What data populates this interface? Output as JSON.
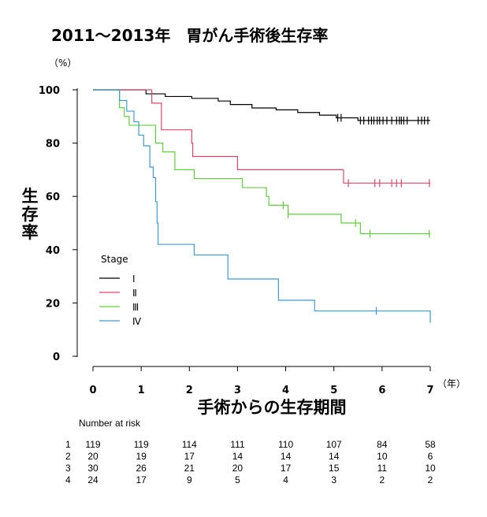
{
  "chart_data": {
    "type": "line",
    "title": "2011～2013年　胃がん手術後生存率",
    "y_unit": "（%）",
    "x_unit": "（年）",
    "xlabel": "手術からの生存期間",
    "ylabel": "生存率",
    "xlim": [
      0,
      7
    ],
    "ylim": [
      0,
      100
    ],
    "x_ticks": [
      "0",
      "1",
      "2",
      "3",
      "4",
      "5",
      "6",
      "7"
    ],
    "y_ticks": [
      "0",
      "20",
      "40",
      "60",
      "80",
      "100"
    ],
    "grid": false,
    "legend": {
      "title": "Stage",
      "placement": "bottom-left"
    },
    "series": [
      {
        "name": "Ⅰ",
        "color": "#000000",
        "x": [
          0,
          0.9,
          1.1,
          1.5,
          2.05,
          2.6,
          2.85,
          3.3,
          3.8,
          4.25,
          4.7,
          5.05,
          5.5,
          7.0
        ],
        "y": [
          100,
          100,
          98.5,
          97.5,
          96.8,
          95.8,
          94.5,
          93.2,
          92.5,
          91.5,
          90.5,
          89.5,
          88.5,
          88.5
        ],
        "censor_x": [
          5.08,
          5.15,
          5.55,
          5.62,
          5.72,
          5.78,
          5.83,
          5.9,
          5.95,
          6.02,
          6.1,
          6.2,
          6.3,
          6.36,
          6.4,
          6.45,
          6.52,
          6.75,
          6.82,
          6.88,
          6.95
        ]
      },
      {
        "name": "Ⅱ",
        "color": "#e0476b",
        "x": [
          0,
          0.85,
          1.22,
          1.42,
          2.05,
          2.07,
          3.0,
          5.1,
          5.2,
          7.0
        ],
        "y": [
          100,
          100,
          95,
          85,
          80,
          75,
          70,
          70,
          65,
          65
        ],
        "censor_x": [
          5.3,
          5.85,
          5.95,
          6.2,
          6.3,
          6.4,
          6.98
        ]
      },
      {
        "name": "Ⅲ",
        "color": "#5fcf3f",
        "x": [
          0,
          0.3,
          0.55,
          0.65,
          0.75,
          1.1,
          1.3,
          1.45,
          1.7,
          2.1,
          3.1,
          3.6,
          3.65,
          4.05,
          5.15,
          5.55,
          7.0
        ],
        "y": [
          100,
          100,
          93.3,
          90,
          86.7,
          86.7,
          80,
          76.7,
          70,
          66.7,
          63.3,
          60,
          56.7,
          53.3,
          50,
          46,
          46
        ],
        "censor_x": [
          3.95,
          4.05,
          5.45,
          5.75,
          6.98
        ]
      },
      {
        "name": "Ⅳ",
        "color": "#3e9ad6",
        "x": [
          0,
          0.3,
          0.55,
          0.7,
          0.85,
          0.95,
          1.05,
          1.18,
          1.25,
          1.3,
          1.33,
          1.35,
          2.1,
          2.8,
          3.85,
          4.6,
          7.0
        ],
        "y": [
          100,
          100,
          96,
          92,
          88,
          83,
          79,
          71,
          67,
          58,
          50,
          42,
          38,
          29,
          21,
          17,
          12.5
        ],
        "censor_x": [
          5.88
        ]
      }
    ],
    "risk_table": {
      "title": "Number at risk",
      "rows": [
        {
          "stage": "1",
          "values": [
            "119",
            "119",
            "114",
            "111",
            "110",
            "107",
            "84",
            "58"
          ]
        },
        {
          "stage": "2",
          "values": [
            "20",
            "19",
            "17",
            "14",
            "14",
            "14",
            "10",
            "6"
          ]
        },
        {
          "stage": "3",
          "values": [
            "30",
            "26",
            "21",
            "20",
            "17",
            "15",
            "11",
            "10"
          ]
        },
        {
          "stage": "4",
          "values": [
            "24",
            "17",
            "9",
            "5",
            "4",
            "3",
            "2",
            "2"
          ]
        }
      ]
    }
  }
}
